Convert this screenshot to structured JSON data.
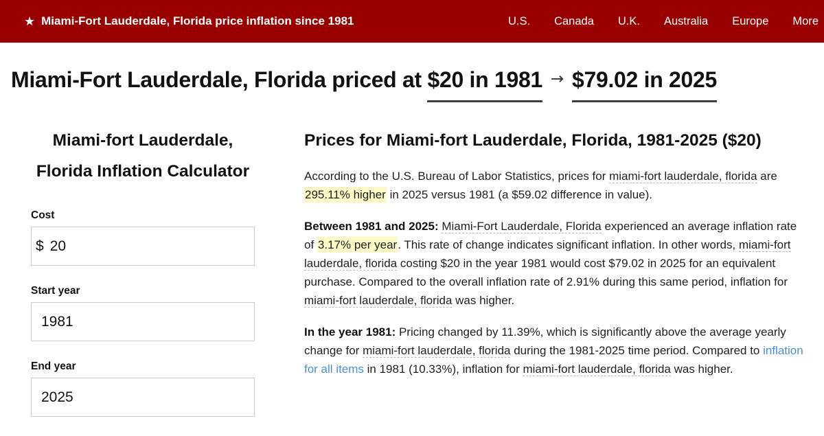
{
  "colors": {
    "navbar_bg": "#990000",
    "highlight": "#fbfac5",
    "link": "#4a90d2",
    "hero_underline": "#3d3d3d"
  },
  "navbar": {
    "star": "★",
    "brand": "Miami-Fort Lauderdale, Florida price inflation since 1981",
    "links": [
      {
        "label": "U.S."
      },
      {
        "label": "Canada"
      },
      {
        "label": "U.K."
      },
      {
        "label": "Australia"
      },
      {
        "label": "Europe"
      },
      {
        "label": "More"
      }
    ]
  },
  "hero": {
    "prefix": "Miami-Fort Lauderdale, Florida priced at ",
    "from": "$20 in 1981",
    "arrow": "→",
    "to": "$79.02 in 2025"
  },
  "calculator": {
    "title": "Miami-fort Lauderdale, Florida Inflation Calculator",
    "cost_label": "Cost",
    "cost_prefix": "$",
    "cost_value": "20",
    "start_label": "Start year",
    "start_value": "1981",
    "end_label": "End year",
    "end_value": "2025"
  },
  "article": {
    "heading": "Prices for Miami-fort Lauderdale, Florida, 1981-2025 ($20)",
    "p1": {
      "s0": "According to the U.S. Bureau of Labor Statistics, prices for ",
      "s1": "miami-fort lauderdale, florida",
      "s2": " are ",
      "s3": "295.11% higher",
      "s4": " in 2025 versus 1981 (a $59.02 difference in value)."
    },
    "p2": {
      "s0": "Between 1981 and 2025: ",
      "s1": "Miami-Fort Lauderdale, Florida",
      "s2": " experienced an average inflation rate of ",
      "s3": "3.17% per year",
      "s4": ". This rate of change indicates significant inflation. In other words, ",
      "s5": "miami-fort lauderdale, florida",
      "s6": " costing $20 in the year 1981 would cost $79.02 in 2025 for an equivalent purchase. Compared to the overall inflation rate of 2.91% during this same period, inflation for ",
      "s7": "miami-fort lauderdale, florida",
      "s8": " was higher."
    },
    "p3": {
      "s0": "In the year 1981: ",
      "s1": "Pricing changed by 11.39%, which is significantly above the average yearly change for ",
      "s2": "miami-fort lauderdale, florida",
      "s3": " during the 1981-2025 time period. Compared to ",
      "s4": "inflation for all items",
      "s5": " in 1981 (10.33%), inflation for ",
      "s6": "miami-fort lauderdale, florida",
      "s7": " was higher."
    }
  }
}
